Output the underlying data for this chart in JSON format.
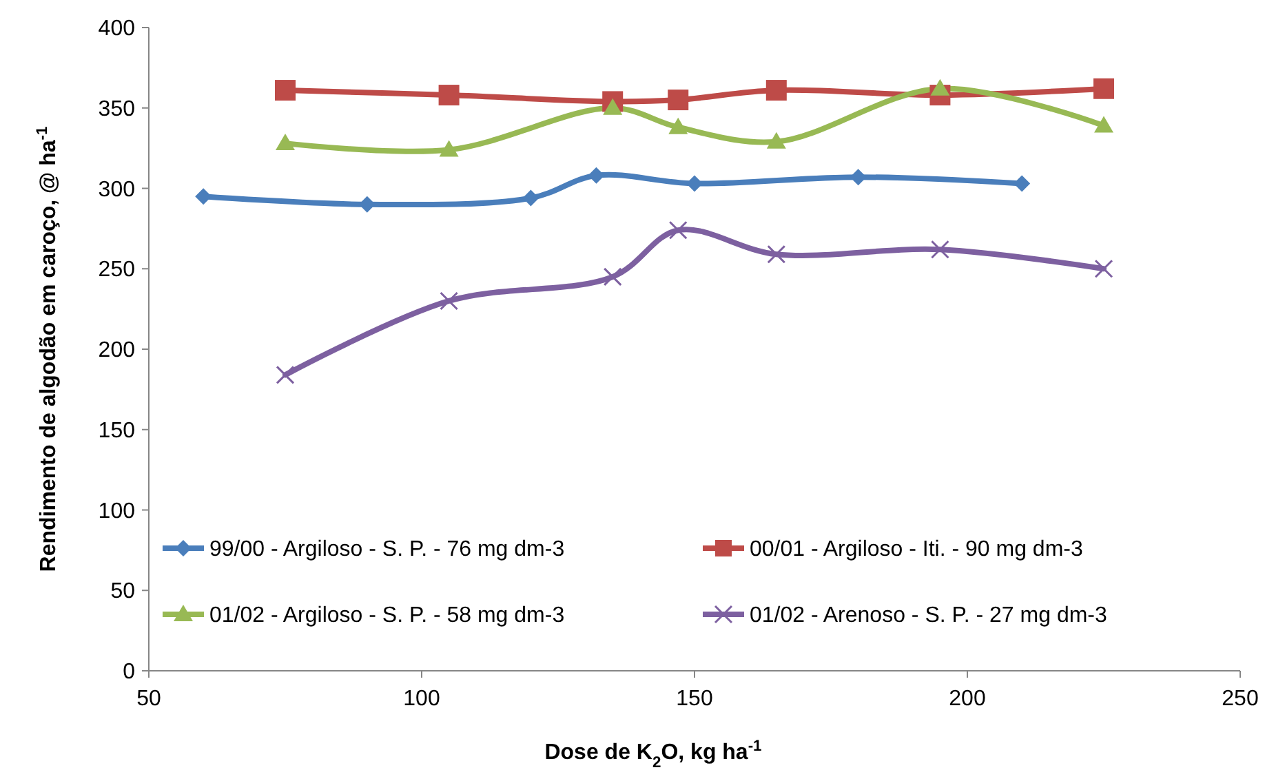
{
  "chart_data": {
    "type": "line",
    "xlabel": "Dose de K$_{2}$O, kg ha$^{-1}$",
    "ylabel": "Rendimento de algodão em caroço, @ ha$^{-1}$",
    "xlim": [
      50,
      250
    ],
    "xticks": [
      50,
      100,
      150,
      200,
      250
    ],
    "ylim": [
      0,
      400
    ],
    "yticks": [
      0,
      50,
      100,
      150,
      200,
      250,
      300,
      350,
      400
    ],
    "grid": false,
    "legend": "bottom",
    "line_style": "solid",
    "series": [
      {
        "name": "99/00 - Argiloso - S. P. - 76 mg dm-3",
        "color": "#4a7ebb",
        "marker": "diamond",
        "x": [
          60,
          90,
          120,
          132,
          150,
          180,
          210
        ],
        "values": [
          295,
          290,
          294,
          308,
          303,
          307,
          303
        ]
      },
      {
        "name": "00/01 - Argiloso - Iti. - 90 mg dm-3",
        "color": "#be4b48",
        "marker": "square",
        "x": [
          75,
          105,
          135,
          147,
          165,
          195,
          225
        ],
        "values": [
          361,
          358,
          354,
          355,
          361,
          358,
          362
        ]
      },
      {
        "name": "01/02 - Argiloso - S. P. - 58 mg dm-3",
        "color": "#98b954",
        "marker": "triangle",
        "x": [
          75,
          105,
          135,
          147,
          165,
          195,
          225
        ],
        "values": [
          328,
          324,
          350,
          338,
          329,
          362,
          339
        ]
      },
      {
        "name": "01/02 - Arenoso - S. P. - 27 mg dm-3",
        "color": "#7d60a0",
        "marker": "cross",
        "x": [
          75,
          105,
          135,
          147,
          165,
          195,
          225
        ],
        "values": [
          184,
          230,
          245,
          274,
          259,
          262,
          250
        ]
      }
    ]
  }
}
